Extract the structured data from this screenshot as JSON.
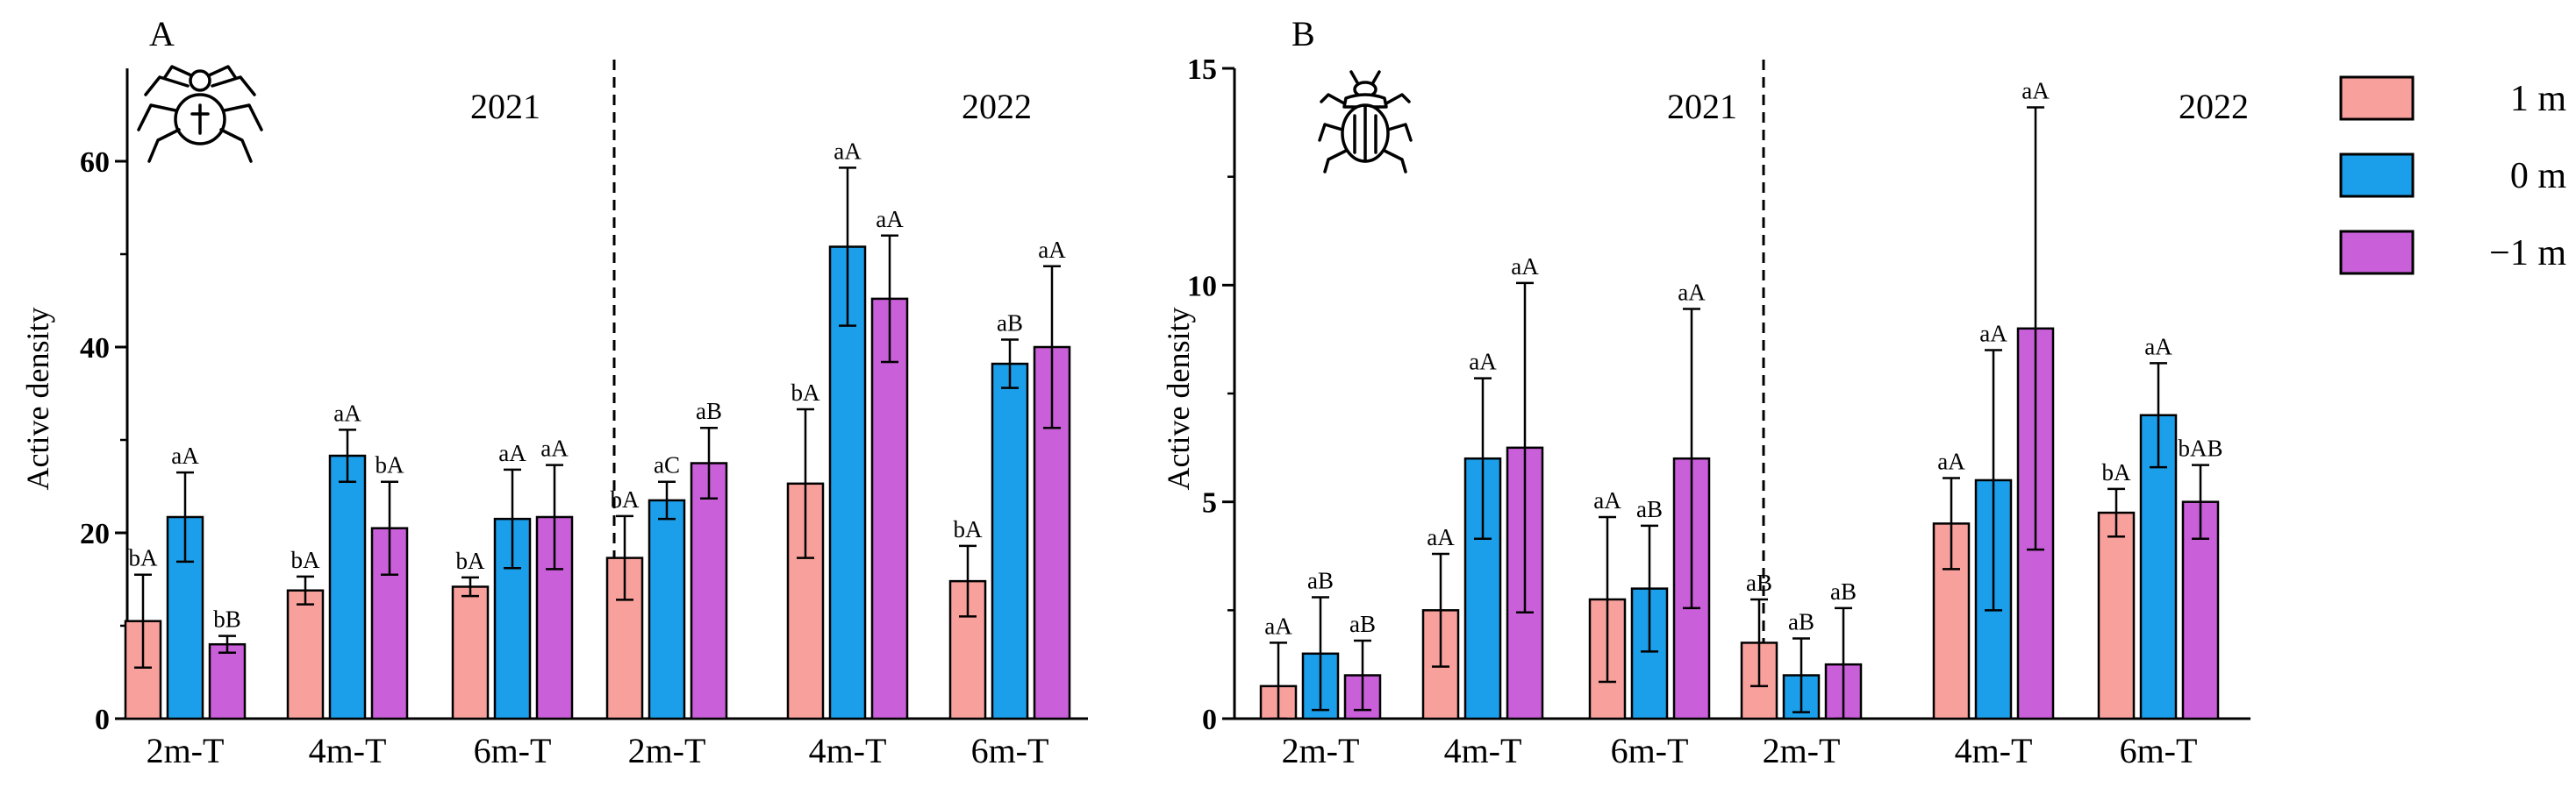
{
  "legend": {
    "entries": [
      {
        "label": "1 m",
        "color": "#F8A19C"
      },
      {
        "label": "0 m",
        "color": "#1C9FEA"
      },
      {
        "label": "−1 m",
        "color": "#C95FD9"
      }
    ]
  },
  "chart_data": [
    {
      "type": "bar",
      "panel_label": "A",
      "icon": "spider-icon",
      "ylabel": "Active density",
      "ylim": [
        0,
        70
      ],
      "yticks": [
        0,
        20,
        40,
        60
      ],
      "categories": [
        "2m-T",
        "4m-T",
        "6m-T",
        "2m-T",
        "4m-T",
        "6m-T"
      ],
      "year_labels": [
        "2021",
        "2022"
      ],
      "series": [
        {
          "name": "1 m",
          "values": [
            10.5,
            13.8,
            14.2,
            17.3,
            25.3,
            14.8
          ],
          "errors": [
            5.0,
            1.5,
            1.0,
            4.5,
            8.0,
            3.8
          ],
          "labels": [
            "bA",
            "bA",
            "bA",
            "bA",
            "bA",
            "bA"
          ]
        },
        {
          "name": "0 m",
          "values": [
            21.7,
            28.3,
            21.5,
            23.5,
            50.8,
            38.2
          ],
          "errors": [
            4.8,
            2.8,
            5.3,
            2.0,
            8.5,
            2.6
          ],
          "labels": [
            "aA",
            "aA",
            "aA",
            "aC",
            "aA",
            "aB"
          ]
        },
        {
          "name": "−1 m",
          "values": [
            8.0,
            20.5,
            21.7,
            27.5,
            45.2,
            40.0
          ],
          "errors": [
            0.9,
            5.0,
            5.6,
            3.8,
            6.8,
            8.7
          ],
          "labels": [
            "bB",
            "bA",
            "aA",
            "aB",
            "aA",
            "aA"
          ]
        }
      ]
    },
    {
      "type": "bar",
      "panel_label": "B",
      "icon": "beetle-icon",
      "ylabel": "Active density",
      "ylim": [
        0,
        15
      ],
      "yticks": [
        0,
        5,
        10,
        15
      ],
      "categories": [
        "2m-T",
        "4m-T",
        "6m-T",
        "2m-T",
        "4m-T",
        "6m-T"
      ],
      "year_labels": [
        "2021",
        "2022"
      ],
      "series": [
        {
          "name": "1 m",
          "values": [
            0.75,
            2.5,
            2.75,
            1.75,
            4.5,
            4.75
          ],
          "errors": [
            1.0,
            1.3,
            1.9,
            1.0,
            1.05,
            0.55
          ],
          "labels": [
            "aA",
            "aA",
            "aA",
            "aB",
            "aA",
            "bA"
          ]
        },
        {
          "name": "0 m",
          "values": [
            1.5,
            6.0,
            3.0,
            1.0,
            5.5,
            7.0
          ],
          "errors": [
            1.3,
            1.85,
            1.45,
            0.85,
            3.0,
            1.2
          ],
          "labels": [
            "aB",
            "aA",
            "aB",
            "aB",
            "aA",
            "aA"
          ]
        },
        {
          "name": "−1 m",
          "values": [
            1.0,
            6.25,
            6.0,
            1.25,
            9.0,
            5.0
          ],
          "errors": [
            0.8,
            3.8,
            3.45,
            1.3,
            5.1,
            0.85
          ],
          "labels": [
            "aB",
            "aA",
            "aA",
            "aB",
            "aA",
            "bAB"
          ]
        }
      ]
    }
  ]
}
